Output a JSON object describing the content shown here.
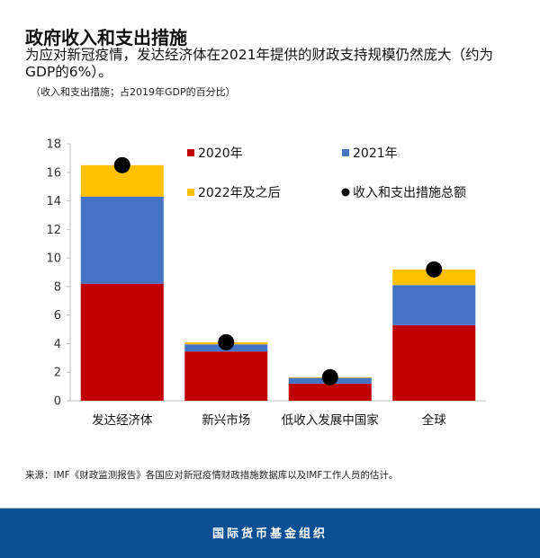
{
  "title": "政府收入和支出措施",
  "subtitle": "为应对新冠疫情，发达经济体在2021年提供的财政支持规模仍然庞大（约为GDP的6%）。",
  "note": "（收入和支出措施；占2019年GDP的百分比）",
  "source": "来源：IMF《财政监测报告》各国应对新冠疫情财政措施数据库以及IMF工作人员的估计。",
  "footer": "国际货币基金组织",
  "chart_data": {
    "type": "bar",
    "stacked": true,
    "categories": [
      "发达经济体",
      "新兴市场",
      "低收入发展中国家",
      "全球"
    ],
    "series": [
      {
        "name": "2020年",
        "color": "#c00000",
        "values": [
          8.2,
          3.45,
          1.2,
          5.3
        ]
      },
      {
        "name": "2021年",
        "color": "#4472c4",
        "values": [
          6.1,
          0.5,
          0.4,
          2.8
        ]
      },
      {
        "name": "2022年及之后",
        "color": "#ffc000",
        "values": [
          2.2,
          0.15,
          0.05,
          1.1
        ]
      }
    ],
    "markers": {
      "name": "收入和支出措施总额",
      "color": "#000000",
      "values": [
        16.5,
        4.1,
        1.65,
        9.2
      ]
    },
    "ylim": [
      0,
      18
    ],
    "yticks": [
      "0",
      "2",
      "4",
      "6",
      "8",
      "10",
      "12",
      "14",
      "16",
      "18"
    ],
    "grid": false,
    "legend": "top-right"
  }
}
